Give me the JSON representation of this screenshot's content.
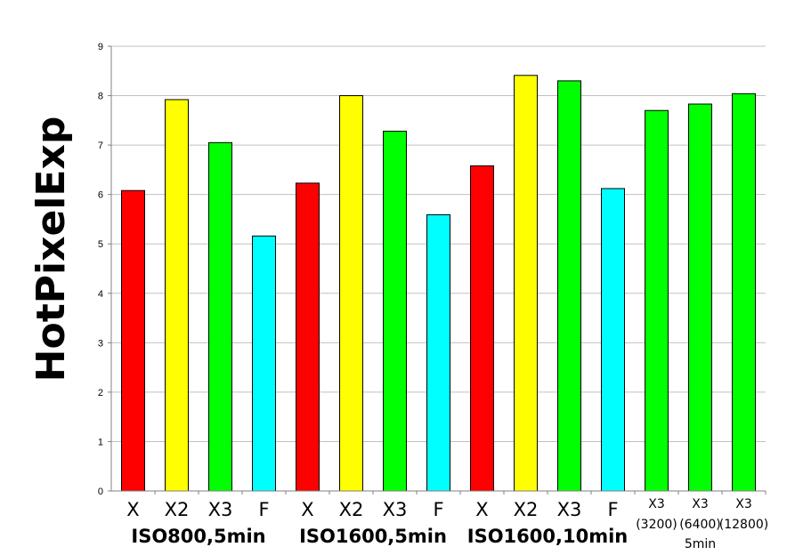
{
  "chart_data": {
    "type": "bar",
    "title": "",
    "xlabel": "",
    "ylabel": "HotPixelExp",
    "ylim": [
      0,
      9
    ],
    "yticks": [
      "0",
      "1",
      "2",
      "3",
      "4",
      "5",
      "6",
      "7",
      "8",
      "9"
    ],
    "grid": true,
    "bars": [
      {
        "label": "X",
        "sublabel": "",
        "value": 6.08,
        "color": "#ff0000"
      },
      {
        "label": "X2",
        "sublabel": "",
        "value": 7.92,
        "color": "#ffff00"
      },
      {
        "label": "X3",
        "sublabel": "",
        "value": 7.05,
        "color": "#00ff00"
      },
      {
        "label": "F",
        "sublabel": "",
        "value": 5.16,
        "color": "#00ffff"
      },
      {
        "label": "X",
        "sublabel": "",
        "value": 6.23,
        "color": "#ff0000"
      },
      {
        "label": "X2",
        "sublabel": "",
        "value": 8.0,
        "color": "#ffff00"
      },
      {
        "label": "X3",
        "sublabel": "",
        "value": 7.28,
        "color": "#00ff00"
      },
      {
        "label": "F",
        "sublabel": "",
        "value": 5.59,
        "color": "#00ffff"
      },
      {
        "label": "X",
        "sublabel": "",
        "value": 6.58,
        "color": "#ff0000"
      },
      {
        "label": "X2",
        "sublabel": "",
        "value": 8.41,
        "color": "#ffff00"
      },
      {
        "label": "X3",
        "sublabel": "",
        "value": 8.3,
        "color": "#00ff00"
      },
      {
        "label": "F",
        "sublabel": "",
        "value": 6.12,
        "color": "#00ffff"
      },
      {
        "label": "X3",
        "sublabel": "(3200)",
        "value": 7.7,
        "color": "#00ff00"
      },
      {
        "label": "X3",
        "sublabel": "(6400)",
        "value": 7.83,
        "color": "#00ff00"
      },
      {
        "label": "X3",
        "sublabel": "(12800)",
        "value": 8.04,
        "color": "#00ff00"
      }
    ],
    "groups": [
      {
        "label": "ISO800,5min",
        "first": 0,
        "last": 3
      },
      {
        "label": "ISO1600,5min",
        "first": 4,
        "last": 7
      },
      {
        "label": "ISO1600,10min",
        "first": 8,
        "last": 11
      }
    ],
    "extra_labels": [
      {
        "text": "5min",
        "under": 13
      }
    ]
  }
}
